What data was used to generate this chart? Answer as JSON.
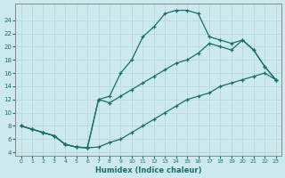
{
  "xlabel": "Humidex (Indice chaleur)",
  "bg_color": "#cce9ee",
  "line_color": "#1a6e6a",
  "grid_color": "#b8d8de",
  "xlim_min": -0.5,
  "xlim_max": 23.5,
  "ylim_min": 3.5,
  "ylim_max": 26.5,
  "xticks": [
    0,
    1,
    2,
    3,
    4,
    5,
    6,
    7,
    8,
    9,
    10,
    11,
    12,
    13,
    14,
    15,
    16,
    17,
    18,
    19,
    20,
    21,
    22,
    23
  ],
  "yticks": [
    4,
    6,
    8,
    10,
    12,
    14,
    16,
    18,
    20,
    22,
    24
  ],
  "line1_x": [
    0,
    1,
    2,
    3,
    4,
    5,
    6,
    7,
    8,
    9,
    10,
    11,
    12,
    13,
    14,
    15,
    16,
    17,
    18,
    19,
    20,
    21,
    22,
    23
  ],
  "line1_y": [
    8.0,
    7.5,
    7.0,
    6.5,
    5.2,
    4.8,
    4.7,
    12.0,
    12.5,
    16.0,
    18.0,
    21.5,
    23.0,
    25.0,
    25.5,
    25.5,
    25.0,
    21.5,
    21.0,
    20.5,
    21.0,
    19.5,
    17.0,
    15.0
  ],
  "line2_x": [
    0,
    1,
    2,
    3,
    4,
    5,
    6,
    7,
    8,
    9,
    10,
    11,
    12,
    13,
    14,
    15,
    16,
    17,
    18,
    19,
    20,
    21,
    22,
    23
  ],
  "line2_y": [
    8.0,
    7.5,
    7.0,
    6.5,
    5.2,
    4.8,
    4.7,
    12.0,
    11.5,
    12.5,
    13.5,
    14.5,
    15.5,
    16.5,
    17.5,
    18.0,
    19.0,
    20.5,
    20.0,
    19.5,
    21.0,
    19.5,
    17.0,
    15.0
  ],
  "line3_x": [
    0,
    1,
    2,
    3,
    4,
    5,
    6,
    7,
    8,
    9,
    10,
    11,
    12,
    13,
    14,
    15,
    16,
    17,
    18,
    19,
    20,
    21,
    22,
    23
  ],
  "line3_y": [
    8.0,
    7.5,
    7.0,
    6.5,
    5.2,
    4.8,
    4.7,
    4.8,
    5.5,
    6.0,
    7.0,
    8.0,
    9.0,
    10.0,
    11.0,
    12.0,
    12.5,
    13.0,
    14.0,
    14.5,
    15.0,
    15.5,
    16.0,
    15.0
  ]
}
